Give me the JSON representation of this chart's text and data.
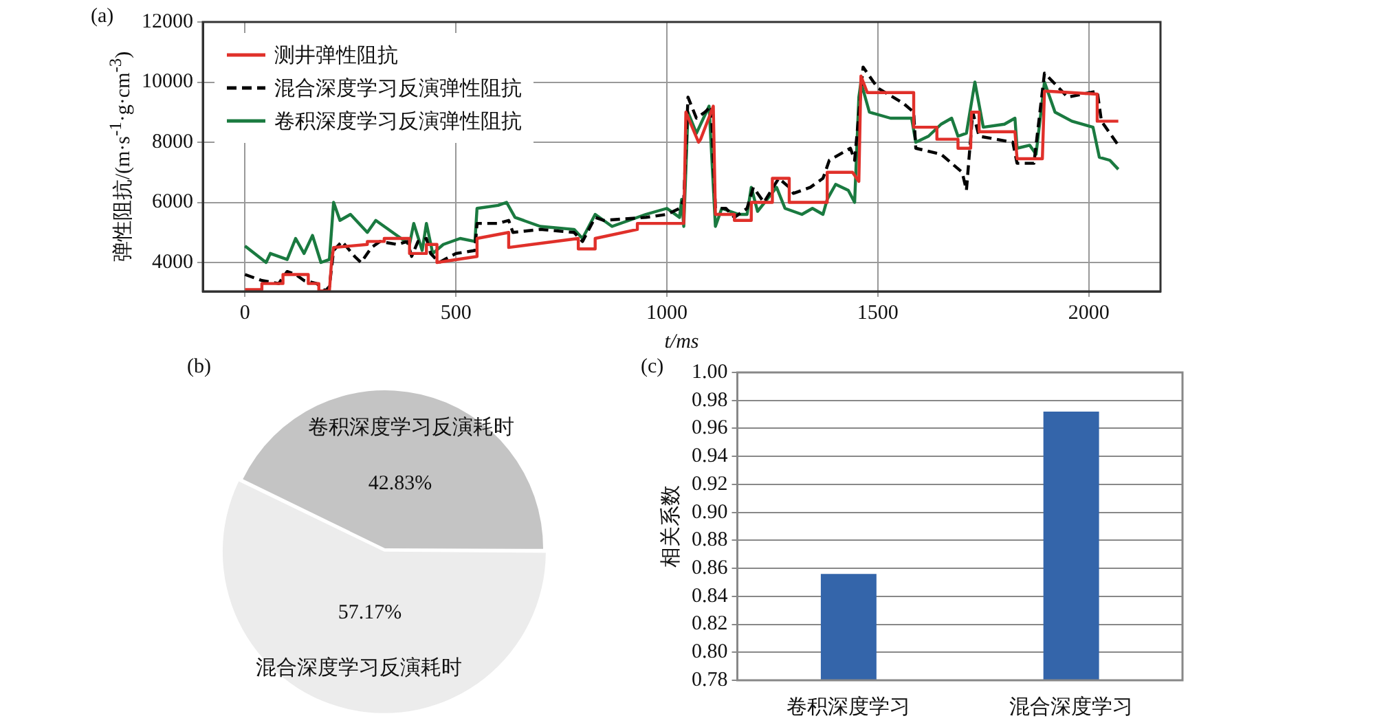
{
  "chart_data": [
    {
      "type": "line",
      "title": "(a)",
      "xlabel": "t/ms",
      "ylabel": "弹性阻抗/(m·s$^{-1}$·g·cm$^{-3}$)",
      "xlim": [
        -100,
        2170
      ],
      "xticks": [
        0,
        500,
        1000,
        1500,
        2000
      ],
      "ylim": [
        3040,
        12000
      ],
      "yticks": [
        4000,
        6000,
        8000,
        10000,
        12000
      ],
      "grid": true,
      "legend": "top left",
      "marker": "none",
      "series": [
        {
          "name": "测井弹性阻抗",
          "color": "#e0302a",
          "line_style": "solid",
          "x": [
            0,
            40,
            40,
            90,
            90,
            150,
            150,
            175,
            175,
            200,
            205,
            210,
            290,
            290,
            330,
            330,
            390,
            390,
            430,
            430,
            455,
            455,
            550,
            550,
            625,
            625,
            790,
            790,
            830,
            830,
            930,
            930,
            1040,
            1045,
            1075,
            1080,
            1110,
            1115,
            1160,
            1160,
            1200,
            1200,
            1250,
            1250,
            1290,
            1290,
            1380,
            1380,
            1440,
            1455,
            1460,
            1475,
            1585,
            1585,
            1640,
            1640,
            1690,
            1690,
            1720,
            1722,
            1740,
            1740,
            1825,
            1830,
            1890,
            1895,
            1900,
            2020,
            2020,
            2070
          ],
          "values": [
            3100,
            3100,
            3300,
            3300,
            3600,
            3600,
            3300,
            3300,
            3050,
            3050,
            4000,
            4500,
            4600,
            4700,
            4700,
            4800,
            4800,
            4300,
            4300,
            4600,
            4600,
            4000,
            4200,
            4800,
            5000,
            4500,
            4800,
            4450,
            4450,
            4800,
            5100,
            5300,
            5300,
            9000,
            8000,
            8100,
            9200,
            5600,
            5600,
            5400,
            5400,
            6000,
            6000,
            6800,
            6800,
            6000,
            6000,
            7000,
            7000,
            6700,
            10200,
            9650,
            9650,
            8500,
            8500,
            8100,
            8100,
            7800,
            7800,
            9000,
            9000,
            8350,
            8350,
            7450,
            7450,
            9700,
            9700,
            9600,
            8700,
            8700
          ]
        },
        {
          "name": "混合深度学习反演弹性阻抗",
          "color": "#000000",
          "line_style": "dashed",
          "x": [
            0,
            40,
            80,
            100,
            120,
            140,
            170,
            190,
            200,
            210,
            230,
            260,
            275,
            300,
            320,
            360,
            385,
            395,
            410,
            430,
            440,
            460,
            500,
            545,
            550,
            600,
            625,
            635,
            700,
            780,
            800,
            830,
            850,
            950,
            1000,
            1030,
            1040,
            1050,
            1070,
            1090,
            1105,
            1115,
            1140,
            1160,
            1190,
            1205,
            1230,
            1265,
            1290,
            1300,
            1340,
            1370,
            1385,
            1435,
            1445,
            1465,
            1500,
            1560,
            1585,
            1590,
            1650,
            1700,
            1710,
            1725,
            1740,
            1820,
            1830,
            1870,
            1895,
            1950,
            2020,
            2030,
            2070
          ],
          "values": [
            3600,
            3400,
            3300,
            3700,
            3600,
            3400,
            3300,
            3050,
            3200,
            4400,
            4700,
            4200,
            4000,
            4500,
            4700,
            4600,
            4700,
            4200,
            4700,
            4800,
            4300,
            4000,
            4300,
            4400,
            5300,
            5300,
            5400,
            5000,
            5100,
            5000,
            4700,
            5500,
            5400,
            5500,
            5600,
            5800,
            6100,
            9500,
            8800,
            9000,
            9200,
            5800,
            5800,
            5500,
            5800,
            6500,
            6000,
            6800,
            6500,
            6300,
            6500,
            6800,
            7400,
            7800,
            7400,
            10500,
            9800,
            9300,
            9000,
            7800,
            7600,
            7000,
            6400,
            9000,
            8200,
            8000,
            7300,
            7300,
            10300,
            9500,
            9700,
            8700,
            7900
          ]
        },
        {
          "name": "卷积深度学习反演弹性阻抗",
          "color": "#1a7a40",
          "line_style": "solid",
          "x": [
            0,
            50,
            60,
            100,
            120,
            140,
            160,
            180,
            200,
            210,
            225,
            250,
            290,
            310,
            390,
            400,
            420,
            430,
            445,
            470,
            510,
            545,
            550,
            600,
            620,
            640,
            700,
            780,
            800,
            830,
            870,
            950,
            1000,
            1030,
            1035,
            1040,
            1050,
            1070,
            1100,
            1115,
            1130,
            1170,
            1190,
            1200,
            1215,
            1260,
            1280,
            1320,
            1345,
            1370,
            1380,
            1400,
            1430,
            1445,
            1455,
            1460,
            1480,
            1530,
            1580,
            1590,
            1620,
            1650,
            1675,
            1690,
            1710,
            1730,
            1750,
            1800,
            1825,
            1830,
            1860,
            1875,
            1895,
            1920,
            1960,
            2010,
            2025,
            2050,
            2070
          ],
          "values": [
            4550,
            4000,
            4300,
            4100,
            4800,
            4300,
            4900,
            4000,
            4100,
            6000,
            5400,
            5600,
            5000,
            5400,
            4600,
            5300,
            4400,
            5300,
            4300,
            4600,
            4800,
            4700,
            5800,
            5900,
            6000,
            5500,
            5200,
            5100,
            4800,
            5600,
            5200,
            5600,
            5800,
            5500,
            6100,
            5200,
            9000,
            8300,
            9200,
            5200,
            5800,
            5600,
            5600,
            6500,
            5700,
            6500,
            5800,
            5600,
            5800,
            5600,
            6100,
            6600,
            6400,
            6000,
            9500,
            10000,
            9000,
            8800,
            8800,
            8000,
            8200,
            8600,
            8800,
            8200,
            8300,
            10000,
            8500,
            8600,
            8800,
            7800,
            7900,
            7600,
            10000,
            9000,
            8700,
            8500,
            7500,
            7400,
            7100
          ]
        }
      ]
    },
    {
      "type": "pie",
      "title": "(b)",
      "categories": [
        "卷积深度学习反演耗时",
        "混合深度学习反演耗时"
      ],
      "values": [
        42.83,
        57.17
      ],
      "colors": [
        "#c4c4c4",
        "#ececec"
      ],
      "value_labels": [
        "42.83%",
        "57.17%"
      ]
    },
    {
      "type": "bar",
      "title": "(c)",
      "ylabel": "相关系数",
      "categories": [
        "卷积深度学习",
        "混合深度学习"
      ],
      "values": [
        0.856,
        0.972
      ],
      "color": "#3465aa",
      "ylim": [
        0.78,
        1.0
      ],
      "yticks": [
        0.78,
        {
          "value": 0.8,
          "label": "0.80"
        },
        0.82,
        0.84,
        0.86,
        0.88,
        {
          "value": 0.9,
          "label": "0.90"
        },
        0.92,
        0.94,
        0.96,
        0.98,
        {
          "value": 1.0,
          "label": "1.00"
        }
      ],
      "grid": "y"
    }
  ]
}
